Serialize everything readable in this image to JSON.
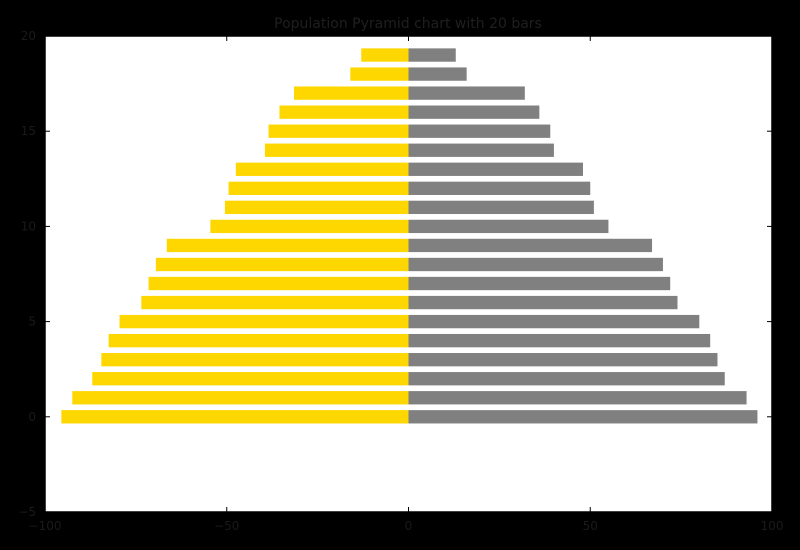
{
  "chart_data": {
    "type": "bar",
    "orientation": "horizontal",
    "title": "Population Pyramid chart with 20 bars",
    "xlabel": "",
    "ylabel": "",
    "xlim": [
      -100,
      100
    ],
    "ylim": [
      -5,
      20
    ],
    "xticks": [
      -100,
      -50,
      0,
      50,
      100
    ],
    "yticks": [
      -5,
      0,
      5,
      10,
      15,
      20
    ],
    "xtick_labels": [
      "−100",
      "−50",
      "0",
      "50",
      "100"
    ],
    "ytick_labels": [
      "−5",
      "0",
      "5",
      "10",
      "15",
      "20"
    ],
    "grid": false,
    "legend": "none",
    "colors": {
      "left": "#ffd700",
      "right": "#808080",
      "plot_bg": "#ffffff",
      "figure_bg": "#000000"
    },
    "categories": [
      0,
      1,
      2,
      3,
      4,
      5,
      6,
      7,
      8,
      9,
      10,
      11,
      12,
      13,
      14,
      15,
      16,
      17,
      18,
      19
    ],
    "series": [
      {
        "values": [
          -95.5,
          -92.5,
          -87,
          -84.5,
          -82.5,
          -79.5,
          -73.5,
          -71.5,
          -69.5,
          -66.5,
          -54.5,
          -50.5,
          -49.5,
          -47.5,
          -39.5,
          -38.5,
          -35.5,
          -31.5,
          -16,
          -13
        ]
      },
      {
        "values": [
          96,
          93,
          87,
          85,
          83,
          80,
          74,
          72,
          70,
          67,
          55,
          51,
          50,
          48,
          40,
          39,
          36,
          32,
          16,
          13
        ]
      }
    ]
  }
}
